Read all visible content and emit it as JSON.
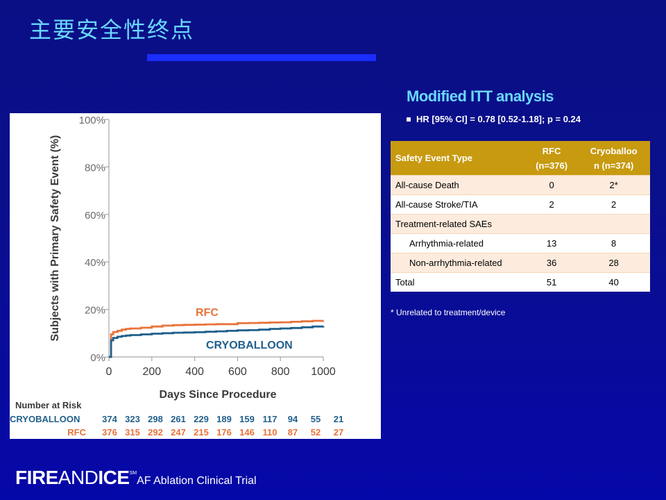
{
  "slide": {
    "title": "主要安全性终点"
  },
  "analysis": {
    "heading": "Modified ITT analysis",
    "hr_text": "HR [95% CI] = 0.78 [0.52-1.18]; p = 0.24"
  },
  "table": {
    "headers": {
      "col1": "Safety Event Type",
      "col2_line1": "RFC",
      "col2_line2": "(n=376)",
      "col3_line1": "Cryoballoo",
      "col3_line2": "n (n=374)"
    },
    "rows": [
      {
        "label": "All-cause Death",
        "rfc": "0",
        "cryo": "2*"
      },
      {
        "label": "All-cause Stroke/TIA",
        "rfc": "2",
        "cryo": "2"
      },
      {
        "label": "Treatment-related SAEs",
        "rfc": "",
        "cryo": ""
      },
      {
        "label": "Arrhythmia-related",
        "rfc": "13",
        "cryo": "8"
      },
      {
        "label": "Non-arrhythmia-related",
        "rfc": "36",
        "cryo": "28"
      },
      {
        "label": "Total",
        "rfc": "51",
        "cryo": "40"
      }
    ],
    "footnote": "* Unrelated to treatment/device"
  },
  "footer": {
    "brand_fire": "FIRE",
    "brand_and": "AND",
    "brand_ice": "ICE",
    "brand_mark": "SM",
    "subtitle": "AF Ablation Clinical Trial"
  },
  "colors": {
    "rfc": "#e8733a",
    "cryo": "#1f5f8b",
    "axis": "#a6a6a6",
    "text": "#3a3a3a"
  },
  "chart_data": {
    "type": "line",
    "title": "",
    "xlabel": "Days Since Procedure",
    "ylabel": "Subjects with Primary Safety Event (%)",
    "xlim": [
      0,
      1000
    ],
    "ylim": [
      0,
      100
    ],
    "x_ticks": [
      "0",
      "200",
      "400",
      "600",
      "800",
      "1000"
    ],
    "y_ticks": [
      "0%",
      "20%",
      "40%",
      "60%",
      "80%",
      "100%"
    ],
    "series": [
      {
        "name": "RFC",
        "label": "RFC",
        "x": [
          0,
          10,
          20,
          40,
          60,
          80,
          100,
          150,
          200,
          250,
          300,
          350,
          400,
          450,
          500,
          550,
          600,
          650,
          700,
          750,
          800,
          850,
          900,
          950,
          1000
        ],
        "y": [
          0,
          9.5,
          10.5,
          11.0,
          11.5,
          11.8,
          12.0,
          12.3,
          12.8,
          13.2,
          13.4,
          13.5,
          13.6,
          13.7,
          13.8,
          13.8,
          14.2,
          14.3,
          14.4,
          14.5,
          14.6,
          14.8,
          15.0,
          15.2,
          15.3
        ]
      },
      {
        "name": "CRYOBALLOON",
        "label": "CRYOBALLOON",
        "x": [
          0,
          10,
          20,
          40,
          60,
          80,
          100,
          150,
          200,
          250,
          300,
          350,
          400,
          450,
          500,
          550,
          600,
          650,
          700,
          750,
          800,
          850,
          900,
          950,
          1000
        ],
        "y": [
          0,
          7.0,
          8.0,
          8.5,
          8.8,
          9.0,
          9.2,
          9.5,
          9.8,
          10.0,
          10.2,
          10.3,
          10.4,
          10.6,
          10.8,
          11.0,
          11.2,
          11.3,
          11.5,
          11.8,
          12.0,
          12.2,
          12.5,
          12.8,
          13.0
        ]
      }
    ],
    "risk_table": {
      "title": "Number at Risk",
      "rows": [
        {
          "name": "CRYOBALLOON",
          "values": [
            "374",
            "323",
            "298",
            "261",
            "229",
            "189",
            "159",
            "117",
            "94",
            "55",
            "21"
          ]
        },
        {
          "name": "RFC",
          "values": [
            "376",
            "315",
            "292",
            "247",
            "215",
            "176",
            "146",
            "110",
            "87",
            "52",
            "27"
          ]
        }
      ]
    }
  }
}
